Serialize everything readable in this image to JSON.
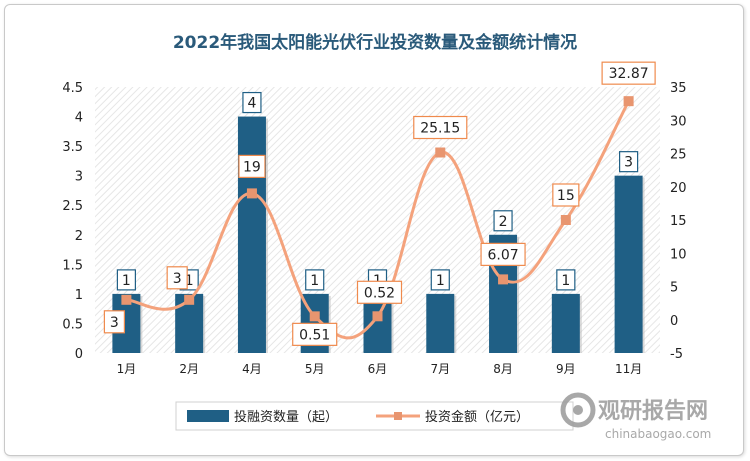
{
  "chart_data": {
    "type": "bar",
    "title": "2022年我国太阳能光伏行业投资数量及金额统计情况",
    "categories": [
      "1月",
      "2月",
      "4月",
      "5月",
      "6月",
      "7月",
      "8月",
      "9月",
      "11月"
    ],
    "series": [
      {
        "name": "投融资数量（起）",
        "type": "bar",
        "axis": "left",
        "values": [
          1,
          1,
          4,
          1,
          1,
          1,
          2,
          1,
          3
        ],
        "labels": [
          "1",
          "1",
          "4",
          "1",
          "1",
          "1",
          "2",
          "1",
          "3"
        ],
        "color": "#1f5f85"
      },
      {
        "name": "投资金额（亿元）",
        "type": "line",
        "axis": "right",
        "values": [
          3,
          3,
          19,
          0.51,
          0.52,
          25.15,
          6.07,
          15,
          32.87
        ],
        "labels": [
          "3",
          "3",
          "19",
          "0.51",
          "0.52",
          "25.15",
          "6.07",
          "15",
          "32.87"
        ],
        "color": "#f4a27c"
      }
    ],
    "y_left": {
      "ylim": [
        0,
        4.5
      ],
      "ticks": [
        "0",
        "0.5",
        "1",
        "1.5",
        "2",
        "2.5",
        "3",
        "3.5",
        "4",
        "4.5"
      ]
    },
    "y_right": {
      "ylim": [
        -5,
        35
      ],
      "ticks": [
        "-5",
        "0",
        "5",
        "10",
        "15",
        "20",
        "25",
        "30",
        "35"
      ]
    },
    "legend_position": "bottom",
    "grid": false,
    "background": "diagonal-hatch"
  },
  "watermark": {
    "name": "观研报告网",
    "url": "chinabaogao.com"
  },
  "colors": {
    "bar": "#1f5f85",
    "line": "#f4a27c",
    "marker": "#e8956f",
    "label_border_bar": "#1f5f85",
    "label_border_line": "#ef8a4d",
    "title": "#2a5a7a"
  }
}
